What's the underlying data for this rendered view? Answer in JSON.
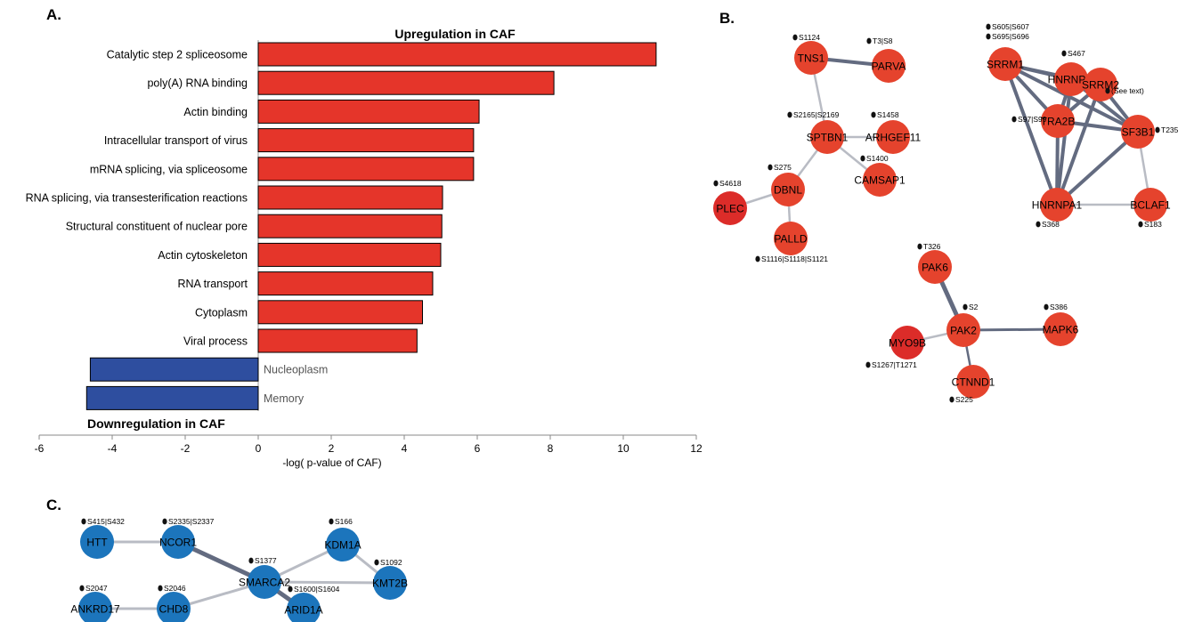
{
  "panels": {
    "a": "A.",
    "b": "B.",
    "c": "C."
  },
  "chart_data": {
    "type": "bar",
    "title": "Upregulation in CAF",
    "subtitle": "Downregulation in CAF",
    "xlabel": "-log( p-value of CAF)",
    "xlim": [
      -6,
      12
    ],
    "xticks": [
      -6,
      -4,
      -2,
      0,
      2,
      4,
      6,
      8,
      10,
      12
    ],
    "colors": {
      "up": "#e5352a",
      "down": "#2e4e9f"
    },
    "categories": [
      "Catalytic step 2 spliceosome",
      "poly(A) RNA binding",
      "Actin binding",
      "Intracellular transport of virus",
      "mRNA splicing, via spliceosome",
      "RNA splicing, via transesterification reactions",
      "Structural constituent of nuclear pore",
      "Actin cytoskeleton",
      "RNA transport",
      "Cytoplasm",
      "Viral process",
      "Nucleoplasm",
      "Memory"
    ],
    "values": [
      10.9,
      8.1,
      6.05,
      5.9,
      5.9,
      5.05,
      5.03,
      5.0,
      4.78,
      4.5,
      4.35,
      -4.6,
      -4.7
    ]
  },
  "networks": {
    "colors": {
      "up_node": "#e5432d",
      "up_node_dark": "#dc2c29",
      "down_node": "#1c75bc",
      "edge_strong": "#636b80",
      "edge_weak": "#b9bcc4"
    },
    "b1": {
      "nodes": [
        {
          "id": "TNS1",
          "site": "S1124"
        },
        {
          "id": "PARVA",
          "site": "T3|S8"
        },
        {
          "id": "SPTBN1",
          "site": "S2165|S2169"
        },
        {
          "id": "ARHGEF11",
          "site": "S1458"
        },
        {
          "id": "CAMSAP1",
          "site": "S1400"
        },
        {
          "id": "DBNL",
          "site": "S275"
        },
        {
          "id": "PLEC",
          "site": "S4618"
        },
        {
          "id": "PALLD",
          "site": "S1116|S1118|S1121"
        }
      ],
      "edges": [
        [
          "TNS1",
          "PARVA"
        ],
        [
          "TNS1",
          "SPTBN1"
        ],
        [
          "SPTBN1",
          "ARHGEF11"
        ],
        [
          "SPTBN1",
          "CAMSAP1"
        ],
        [
          "SPTBN1",
          "DBNL"
        ],
        [
          "DBNL",
          "PLEC"
        ],
        [
          "DBNL",
          "PALLD"
        ]
      ]
    },
    "b2": {
      "nodes": [
        {
          "id": "SRRM1",
          "site": "S605|S607"
        },
        {
          "id": "SRRM1_b",
          "site": "S695|S696"
        },
        {
          "id": "HNRNPM",
          "site": "S467"
        },
        {
          "id": "SRRM2",
          "site": "(See text)"
        },
        {
          "id": "TRA2B",
          "site": "S97|S99"
        },
        {
          "id": "SF3B1",
          "site": "T235"
        },
        {
          "id": "HNRNPA1",
          "site": "S368"
        },
        {
          "id": "BCLAF1",
          "site": "S183"
        }
      ],
      "edges": [
        [
          "SRRM1",
          "HNRNPM"
        ],
        [
          "SRRM1",
          "SRRM2"
        ],
        [
          "SRRM1",
          "TRA2B"
        ],
        [
          "SRRM1",
          "SF3B1"
        ],
        [
          "SRRM1",
          "HNRNPA1"
        ],
        [
          "HNRNPM",
          "SRRM2"
        ],
        [
          "HNRNPM",
          "TRA2B"
        ],
        [
          "HNRNPM",
          "SF3B1"
        ],
        [
          "HNRNPM",
          "HNRNPA1"
        ],
        [
          "SRRM2",
          "TRA2B"
        ],
        [
          "SRRM2",
          "SF3B1"
        ],
        [
          "SRRM2",
          "HNRNPA1"
        ],
        [
          "TRA2B",
          "SF3B1"
        ],
        [
          "TRA2B",
          "HNRNPA1"
        ],
        [
          "SF3B1",
          "HNRNPA1"
        ],
        [
          "SF3B1",
          "BCLAF1"
        ],
        [
          "HNRNPA1",
          "BCLAF1"
        ]
      ]
    },
    "b3": {
      "nodes": [
        {
          "id": "PAK6",
          "site": "T326"
        },
        {
          "id": "PAK2",
          "site": "S2"
        },
        {
          "id": "MAPK6",
          "site": "S386"
        },
        {
          "id": "MYO9B",
          "site": "S1267|T1271"
        },
        {
          "id": "CTNND1",
          "site": "S225"
        }
      ],
      "edges": [
        [
          "PAK6",
          "PAK2"
        ],
        [
          "PAK2",
          "MAPK6"
        ],
        [
          "PAK2",
          "MYO9B"
        ],
        [
          "PAK2",
          "CTNND1"
        ]
      ]
    },
    "c": {
      "nodes": [
        {
          "id": "HTT",
          "site": "S415|S432"
        },
        {
          "id": "NCOR1",
          "site": "S2335|S2337"
        },
        {
          "id": "KDM1A",
          "site": "S166"
        },
        {
          "id": "SMARCA2",
          "site": "S1377"
        },
        {
          "id": "KMT2B",
          "site": "S1092"
        },
        {
          "id": "ARID1A",
          "site": "S1600|S1604"
        },
        {
          "id": "ANKRD17",
          "site": "S2047"
        },
        {
          "id": "CHD8",
          "site": "S2046"
        }
      ],
      "edges": [
        [
          "HTT",
          "NCOR1"
        ],
        [
          "NCOR1",
          "SMARCA2"
        ],
        [
          "SMARCA2",
          "KDM1A"
        ],
        [
          "KDM1A",
          "KMT2B"
        ],
        [
          "SMARCA2",
          "KMT2B"
        ],
        [
          "SMARCA2",
          "ARID1A"
        ],
        [
          "SMARCA2",
          "CHD8"
        ],
        [
          "ANKRD17",
          "CHD8"
        ]
      ]
    }
  }
}
